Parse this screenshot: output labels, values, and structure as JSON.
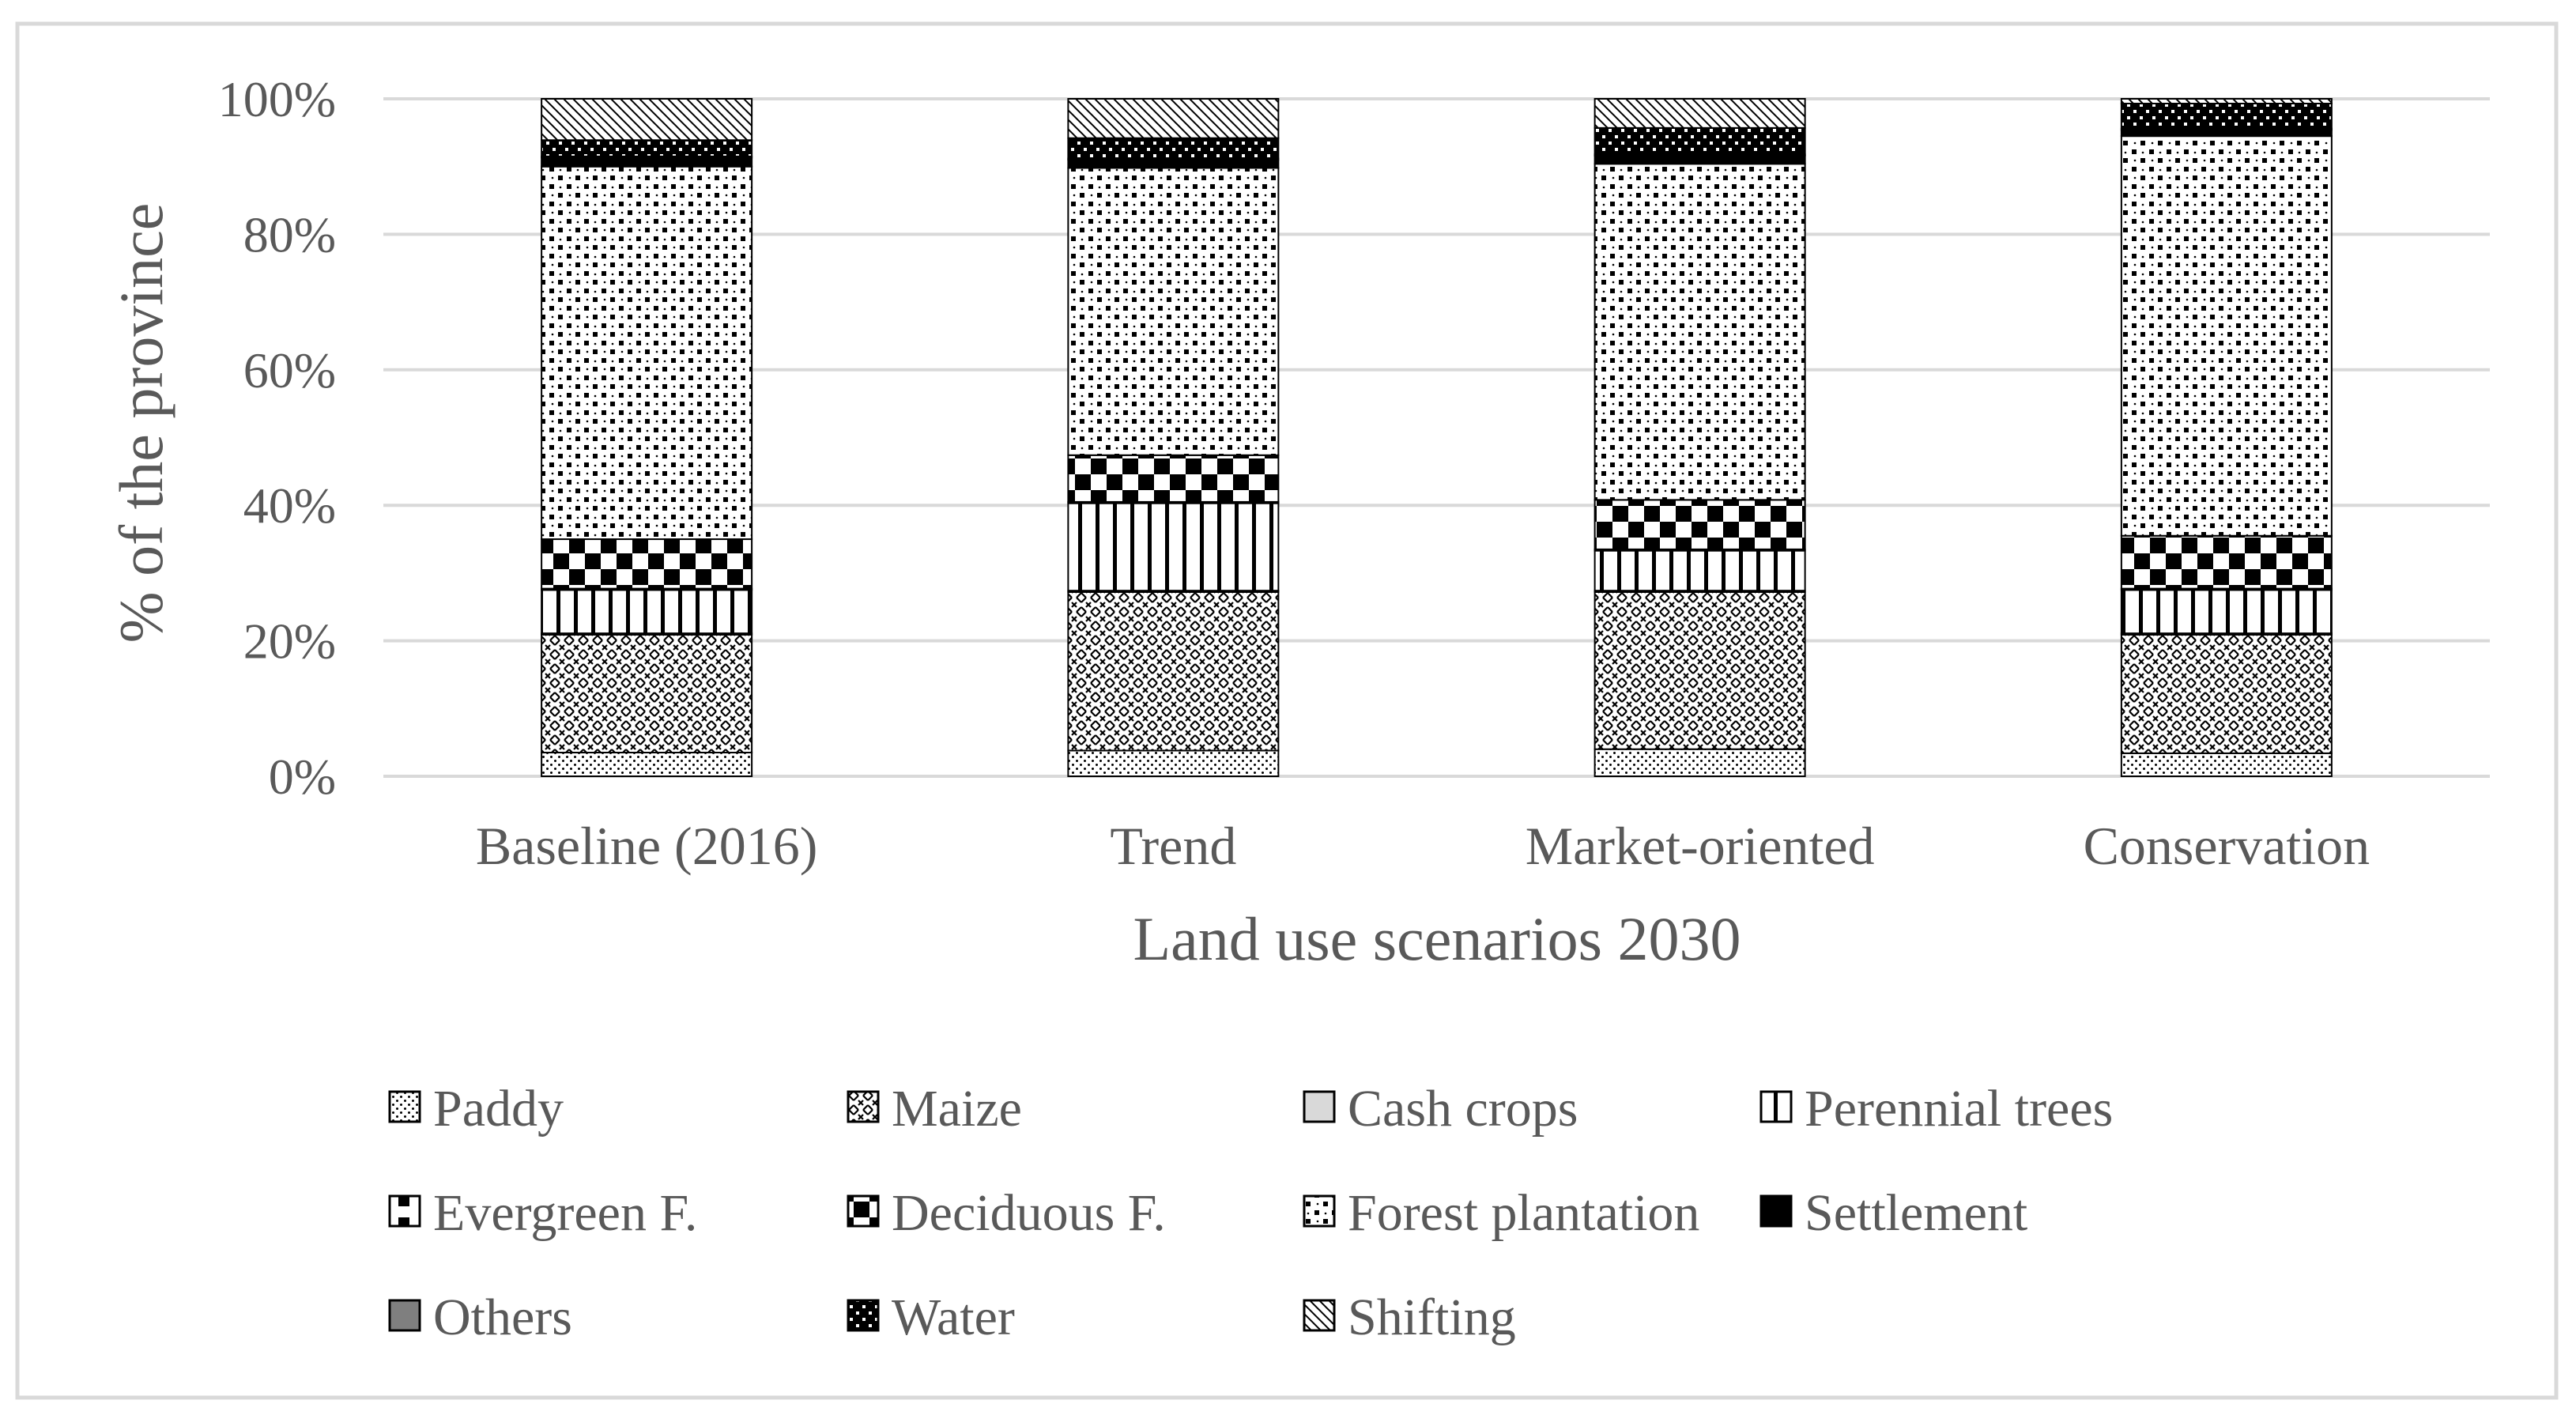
{
  "chart_data": {
    "type": "bar",
    "stacked": true,
    "percent_stacked": true,
    "title": "",
    "xlabel": "Land use scenarios 2030",
    "ylabel": "% of the province",
    "ylim": [
      0,
      100
    ],
    "yticks": [
      "0%",
      "20%",
      "40%",
      "60%",
      "80%",
      "100%"
    ],
    "grid": true,
    "legend_position": "bottom",
    "categories": [
      "Baseline (2016)",
      "Trend",
      "Market-oriented",
      "Conservation"
    ],
    "series": [
      {
        "name": "Paddy",
        "values": [
          3.5,
          3.8,
          4.0,
          3.4
        ]
      },
      {
        "name": "Maize",
        "values": [
          17.4,
          23.4,
          23.2,
          17.5
        ]
      },
      {
        "name": "Cash crops",
        "values": [
          0.2,
          0.2,
          0.2,
          0.2
        ]
      },
      {
        "name": "Perennial trees",
        "values": [
          6.4,
          12.9,
          5.9,
          6.4
        ]
      },
      {
        "name": "Evergreen F.",
        "values": [
          0.2,
          0.2,
          0.2,
          0.2
        ]
      },
      {
        "name": "Deciduous F.",
        "values": [
          7.3,
          6.9,
          7.3,
          7.8
        ]
      },
      {
        "name": "Forest plantation",
        "values": [
          55.0,
          42.4,
          49.6,
          59.0
        ]
      },
      {
        "name": "Settlement",
        "values": [
          1.3,
          1.2,
          1.2,
          0.9
        ]
      },
      {
        "name": "Others",
        "values": [
          0.2,
          0.2,
          0.2,
          0.2
        ]
      },
      {
        "name": "Water",
        "values": [
          2.4,
          3.0,
          3.9,
          3.7
        ]
      },
      {
        "name": "Shifting",
        "values": [
          6.1,
          5.8,
          4.3,
          0.7
        ]
      }
    ],
    "legend": [
      "Paddy",
      "Maize",
      "Cash crops",
      "Perennial trees",
      "Evergreen F.",
      "Deciduous F.",
      "Forest plantation",
      "Settlement",
      "Others",
      "Water",
      "Shifting"
    ]
  }
}
